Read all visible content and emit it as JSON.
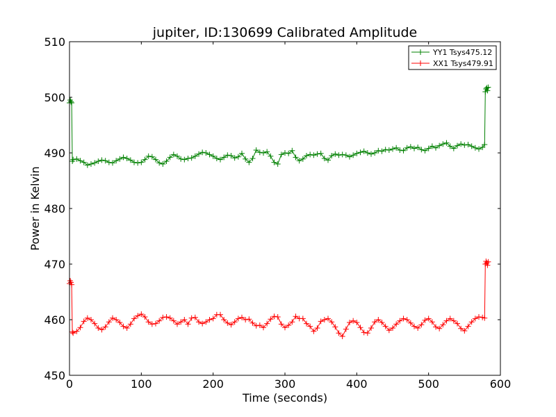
{
  "chart_data": {
    "type": "line",
    "title": "jupiter, ID:130699 Calibrated Amplitude",
    "xlabel": "Time (seconds)",
    "ylabel": "Power in Kelvin",
    "xlim": [
      0,
      600
    ],
    "ylim": [
      450,
      510
    ],
    "xticks": [
      0,
      100,
      200,
      300,
      400,
      500,
      600
    ],
    "yticks": [
      450,
      460,
      470,
      480,
      490,
      500,
      510
    ],
    "xtick_labels": [
      "0",
      "100",
      "200",
      "300",
      "400",
      "500",
      "600"
    ],
    "ytick_labels": [
      "450",
      "460",
      "470",
      "480",
      "490",
      "500",
      "510"
    ],
    "grid": false,
    "legend_position": "top-right",
    "marker": "+",
    "series": [
      {
        "name": "YY1 Tsys475.12",
        "color": "#008000",
        "x": [
          0,
          1,
          2,
          3,
          4,
          5,
          10,
          15,
          20,
          25,
          30,
          35,
          40,
          45,
          50,
          55,
          60,
          65,
          70,
          75,
          80,
          85,
          90,
          95,
          100,
          105,
          110,
          115,
          120,
          125,
          130,
          135,
          140,
          145,
          150,
          155,
          160,
          165,
          170,
          175,
          180,
          185,
          190,
          195,
          200,
          205,
          210,
          215,
          220,
          225,
          230,
          235,
          240,
          245,
          250,
          255,
          260,
          265,
          270,
          275,
          280,
          285,
          290,
          295,
          300,
          305,
          310,
          315,
          320,
          325,
          330,
          335,
          340,
          345,
          350,
          355,
          360,
          365,
          370,
          375,
          380,
          385,
          390,
          395,
          400,
          405,
          410,
          415,
          420,
          425,
          430,
          435,
          440,
          445,
          450,
          455,
          460,
          465,
          470,
          475,
          480,
          485,
          490,
          495,
          500,
          505,
          510,
          515,
          520,
          525,
          530,
          535,
          540,
          545,
          550,
          555,
          560,
          565,
          570,
          575,
          578,
          579,
          580,
          581,
          582,
          583
        ],
        "y": [
          499.0,
          499.5,
          499.2,
          499.0,
          488.5,
          488.8,
          488.9,
          488.6,
          488.3,
          487.8,
          488.0,
          488.2,
          488.5,
          488.7,
          488.6,
          488.3,
          488.2,
          488.6,
          488.9,
          489.2,
          489.0,
          488.7,
          488.3,
          488.2,
          488.3,
          488.8,
          489.4,
          489.3,
          488.8,
          488.2,
          488.0,
          488.5,
          489.2,
          489.7,
          489.4,
          488.9,
          488.8,
          489.0,
          489.1,
          489.4,
          489.8,
          490.1,
          490.0,
          489.7,
          489.4,
          489.0,
          488.8,
          489.2,
          489.6,
          489.5,
          489.1,
          489.3,
          489.9,
          488.9,
          488.3,
          489.0,
          490.5,
          490.1,
          490.0,
          490.2,
          489.4,
          488.3,
          488.0,
          489.7,
          490.0,
          489.9,
          490.4,
          489.2,
          488.6,
          488.9,
          489.5,
          489.7,
          489.6,
          489.8,
          489.9,
          489.0,
          488.7,
          489.5,
          489.8,
          489.6,
          489.7,
          489.6,
          489.3,
          489.6,
          489.9,
          490.1,
          490.3,
          490.0,
          489.8,
          490.0,
          490.4,
          490.3,
          490.6,
          490.5,
          490.7,
          490.9,
          490.5,
          490.4,
          490.9,
          491.1,
          490.8,
          491.0,
          490.6,
          490.4,
          490.8,
          491.2,
          490.9,
          491.3,
          491.6,
          491.8,
          491.2,
          490.8,
          491.3,
          491.6,
          491.4,
          491.5,
          491.2,
          490.9,
          490.7,
          491.0,
          491.5,
          501.0,
          501.5,
          501.7,
          501.2,
          501.8
        ]
      },
      {
        "name": "XX1 Tsys479.91",
        "color": "#ff0000",
        "x": [
          0,
          1,
          2,
          3,
          4,
          5,
          10,
          15,
          20,
          25,
          30,
          35,
          40,
          45,
          50,
          55,
          60,
          65,
          70,
          75,
          80,
          85,
          90,
          95,
          100,
          105,
          110,
          115,
          120,
          125,
          130,
          135,
          140,
          145,
          150,
          155,
          160,
          165,
          170,
          175,
          180,
          185,
          190,
          195,
          200,
          205,
          210,
          215,
          220,
          225,
          230,
          235,
          240,
          245,
          250,
          255,
          260,
          265,
          270,
          275,
          280,
          285,
          290,
          295,
          300,
          305,
          310,
          315,
          320,
          325,
          330,
          335,
          340,
          345,
          350,
          355,
          360,
          365,
          370,
          375,
          380,
          385,
          390,
          395,
          400,
          405,
          410,
          415,
          420,
          425,
          430,
          435,
          440,
          445,
          450,
          455,
          460,
          465,
          470,
          475,
          480,
          485,
          490,
          495,
          500,
          505,
          510,
          515,
          520,
          525,
          530,
          535,
          540,
          545,
          550,
          555,
          560,
          565,
          570,
          575,
          578,
          579,
          580,
          581,
          582,
          583
        ],
        "y": [
          466.5,
          467.0,
          466.7,
          466.3,
          457.8,
          457.6,
          457.9,
          458.6,
          459.7,
          460.3,
          460.0,
          459.3,
          458.5,
          458.2,
          458.7,
          459.6,
          460.3,
          460.0,
          459.5,
          458.8,
          458.5,
          459.2,
          460.2,
          460.7,
          461.0,
          460.5,
          459.6,
          459.2,
          459.3,
          459.8,
          460.4,
          460.5,
          460.3,
          459.8,
          459.2,
          459.6,
          460.0,
          459.2,
          460.3,
          460.4,
          459.6,
          459.3,
          459.6,
          460.0,
          460.2,
          460.9,
          460.9,
          460.0,
          459.4,
          459.1,
          459.6,
          460.2,
          460.4,
          460.0,
          460.1,
          459.4,
          458.9,
          459.0,
          458.6,
          459.3,
          460.1,
          460.6,
          460.5,
          459.2,
          458.6,
          459.0,
          459.6,
          460.6,
          460.2,
          460.2,
          459.3,
          458.8,
          457.9,
          458.5,
          459.7,
          460.0,
          460.2,
          459.6,
          458.7,
          457.6,
          457.0,
          458.3,
          459.5,
          459.8,
          459.5,
          458.6,
          457.7,
          457.6,
          458.5,
          459.6,
          460.0,
          459.5,
          458.8,
          458.1,
          458.5,
          459.2,
          459.8,
          460.2,
          460.0,
          459.4,
          458.8,
          458.5,
          459.1,
          459.9,
          460.2,
          459.6,
          458.7,
          458.4,
          459.1,
          459.8,
          460.2,
          459.8,
          459.3,
          458.4,
          458.0,
          458.8,
          459.6,
          460.2,
          460.5,
          460.4,
          460.3,
          470.0,
          470.5,
          470.2,
          469.8,
          470.4
        ]
      }
    ]
  }
}
